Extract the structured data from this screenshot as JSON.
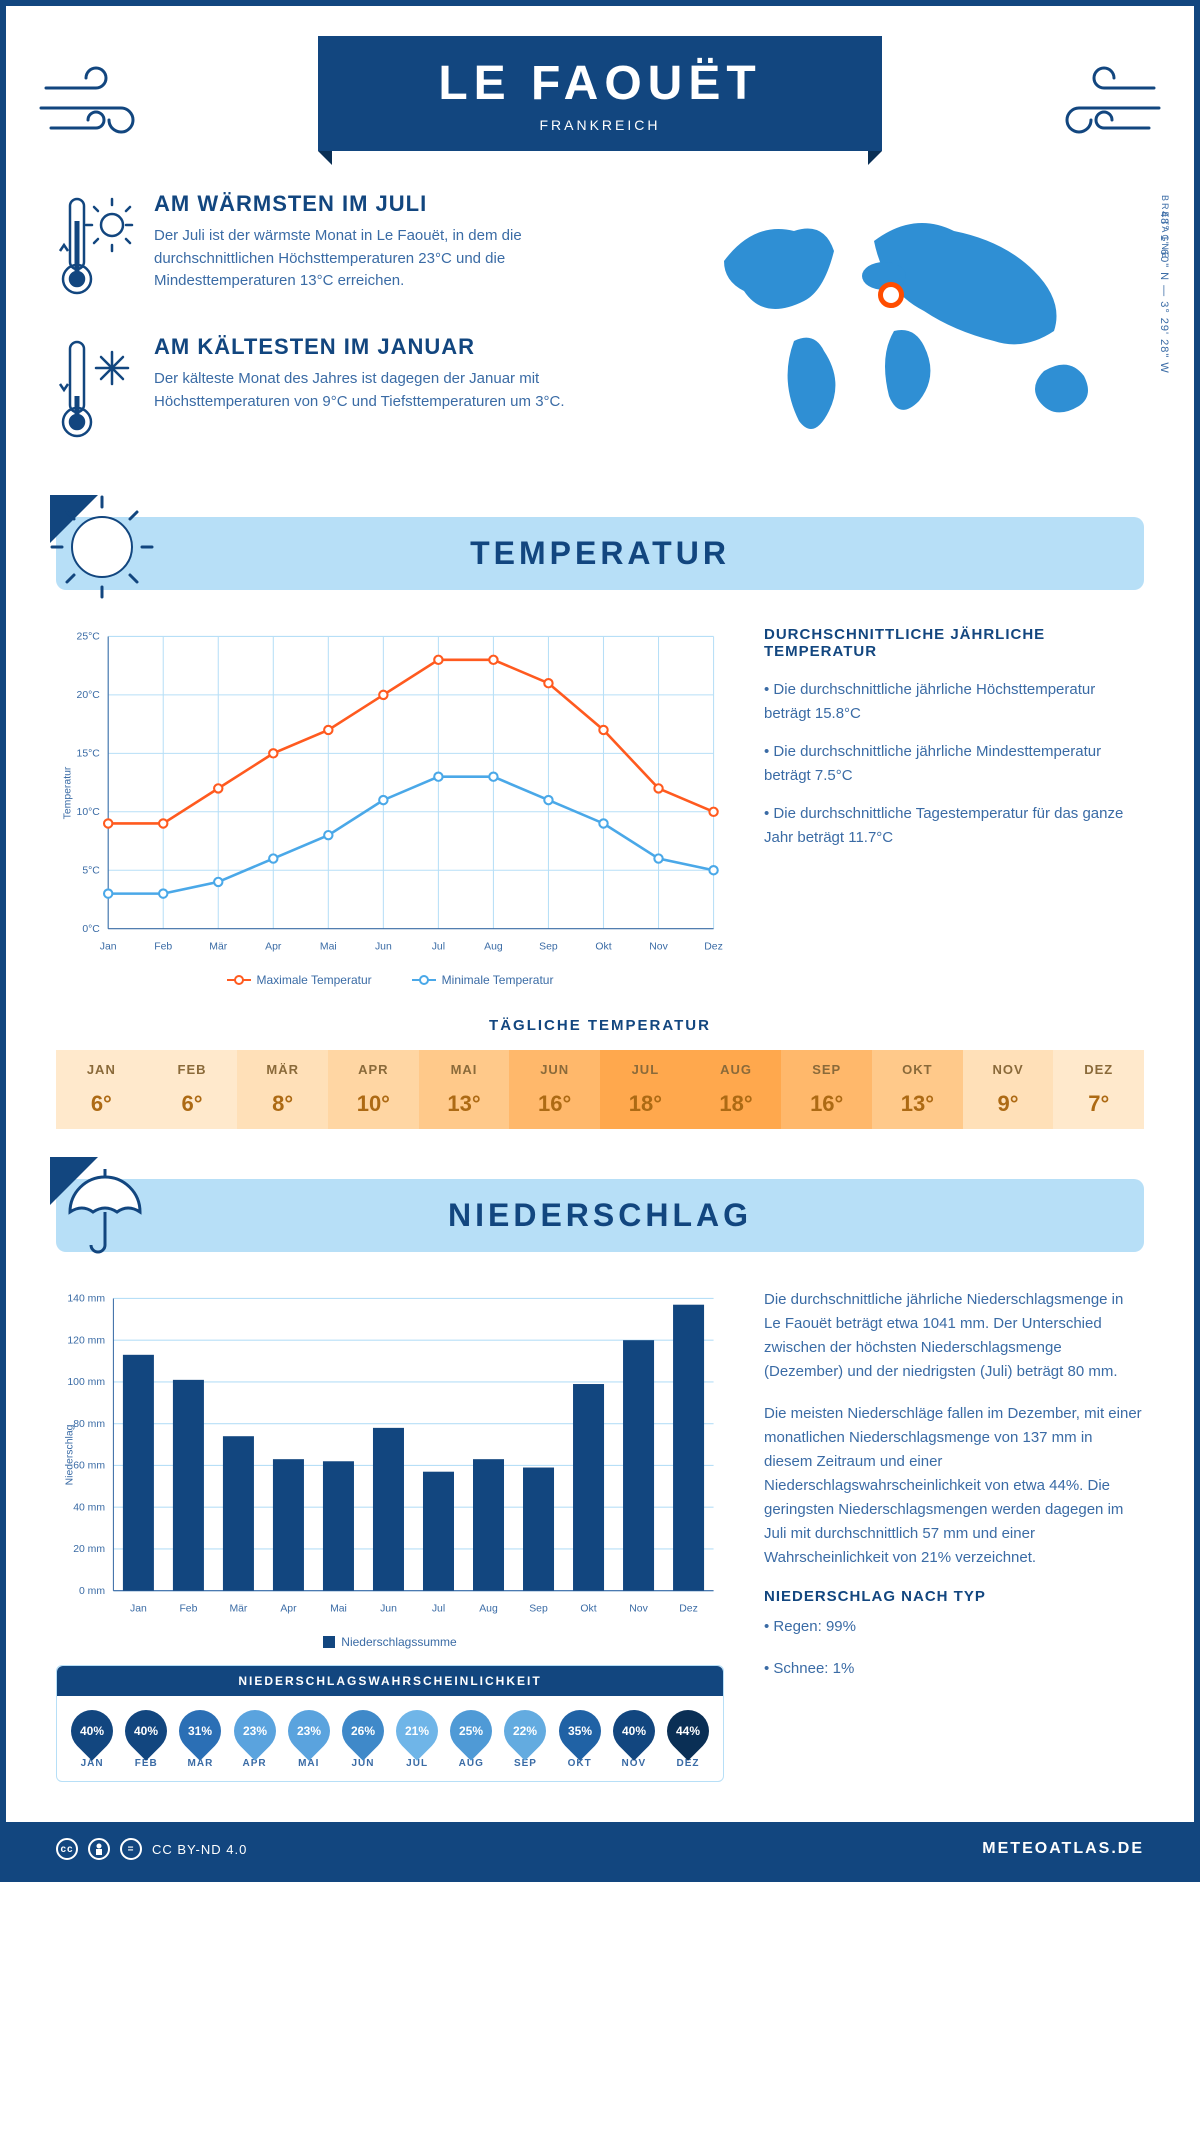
{
  "header": {
    "title": "LE FAOUËT",
    "country": "FRANKREICH"
  },
  "coords": "48° 1' 60\" N — 3° 29' 28\" W",
  "region": "BRETAGNE",
  "pin": {
    "left_pct": 47,
    "top_pct": 40
  },
  "warmest": {
    "heading": "AM WÄRMSTEN IM JULI",
    "text": "Der Juli ist der wärmste Monat in Le Faouët, in dem die durchschnittlichen Höchsttemperaturen 23°C und die Mindesttemperaturen 13°C erreichen."
  },
  "coldest": {
    "heading": "AM KÄLTESTEN IM JANUAR",
    "text": "Der kälteste Monat des Jahres ist dagegen der Januar mit Höchsttemperaturen von 9°C und Tiefsttemperaturen um 3°C."
  },
  "temp_section_title": "TEMPERATUR",
  "precip_section_title": "NIEDERSCHLAG",
  "months_short": [
    "Jan",
    "Feb",
    "Mär",
    "Apr",
    "Mai",
    "Jun",
    "Jul",
    "Aug",
    "Sep",
    "Okt",
    "Nov",
    "Dez"
  ],
  "months_upper": [
    "JAN",
    "FEB",
    "MÄR",
    "APR",
    "MAI",
    "JUN",
    "JUL",
    "AUG",
    "SEP",
    "OKT",
    "NOV",
    "DEZ"
  ],
  "temp_chart": {
    "y_title": "Temperatur",
    "ylim": [
      0,
      25
    ],
    "ytick_step": 5,
    "max_series": {
      "label": "Maximale Temperatur",
      "color": "#ff5a1f",
      "values": [
        9,
        9,
        12,
        15,
        17,
        20,
        23,
        23,
        21,
        17,
        12,
        10
      ]
    },
    "min_series": {
      "label": "Minimale Temperatur",
      "color": "#4aa8e8",
      "values": [
        3,
        3,
        4,
        6,
        8,
        11,
        13,
        13,
        11,
        9,
        6,
        5
      ]
    },
    "grid_color": "#b7dff7"
  },
  "temp_info": {
    "heading": "DURCHSCHNITTLICHE JÄHRLICHE TEMPERATUR",
    "bullets": [
      "• Die durchschnittliche jährliche Höchsttemperatur beträgt 15.8°C",
      "• Die durchschnittliche jährliche Mindesttemperatur beträgt 7.5°C",
      "• Die durchschnittliche Tagestemperatur für das ganze Jahr beträgt 11.7°C"
    ]
  },
  "daily_temp": {
    "title": "TÄGLICHE TEMPERATUR",
    "values": [
      "6°",
      "6°",
      "8°",
      "10°",
      "13°",
      "16°",
      "18°",
      "18°",
      "16°",
      "13°",
      "9°",
      "7°"
    ],
    "bg_colors": [
      "#ffe9cc",
      "#ffe9cc",
      "#ffe0b8",
      "#ffd6a3",
      "#ffc98a",
      "#ffb86b",
      "#ffa84d",
      "#ffa84d",
      "#ffb86b",
      "#ffc98a",
      "#ffe0b8",
      "#ffe9cc"
    ],
    "text_color": "#ad6a14"
  },
  "precip_chart": {
    "y_title": "Niederschlag",
    "legend_label": "Niederschlagssumme",
    "ylim": [
      0,
      140
    ],
    "ytick_step": 20,
    "values": [
      113,
      101,
      74,
      63,
      62,
      78,
      57,
      63,
      59,
      99,
      120,
      137
    ],
    "bar_color": "#12467f",
    "grid_color": "#b7dff7"
  },
  "precip_info": {
    "para1": "Die durchschnittliche jährliche Niederschlagsmenge in Le Faouët beträgt etwa 1041 mm. Der Unterschied zwischen der höchsten Niederschlagsmenge (Dezember) und der niedrigsten (Juli) beträgt 80 mm.",
    "para2": "Die meisten Niederschläge fallen im Dezember, mit einer monatlichen Niederschlagsmenge von 137 mm in diesem Zeitraum und einer Niederschlagswahrscheinlichkeit von etwa 44%. Die geringsten Niederschlagsmengen werden dagegen im Juli mit durchschnittlich 57 mm und einer Wahrscheinlichkeit von 21% verzeichnet.",
    "type_heading": "NIEDERSCHLAG NACH TYP",
    "type_bullets": [
      "• Regen: 99%",
      "• Schnee: 1%"
    ]
  },
  "probability": {
    "title": "NIEDERSCHLAGSWAHRSCHEINLICHKEIT",
    "values": [
      "40%",
      "40%",
      "31%",
      "23%",
      "23%",
      "26%",
      "21%",
      "25%",
      "22%",
      "35%",
      "40%",
      "44%"
    ],
    "drop_colors": [
      "#12467f",
      "#12467f",
      "#2b6fb5",
      "#5aa3de",
      "#5aa3de",
      "#3f89c9",
      "#6fb5e8",
      "#4f9ad6",
      "#63abe0",
      "#2062a5",
      "#12467f",
      "#0a2f55"
    ]
  },
  "footer": {
    "license": "CC BY-ND 4.0",
    "brand": "METEOATLAS.DE"
  }
}
